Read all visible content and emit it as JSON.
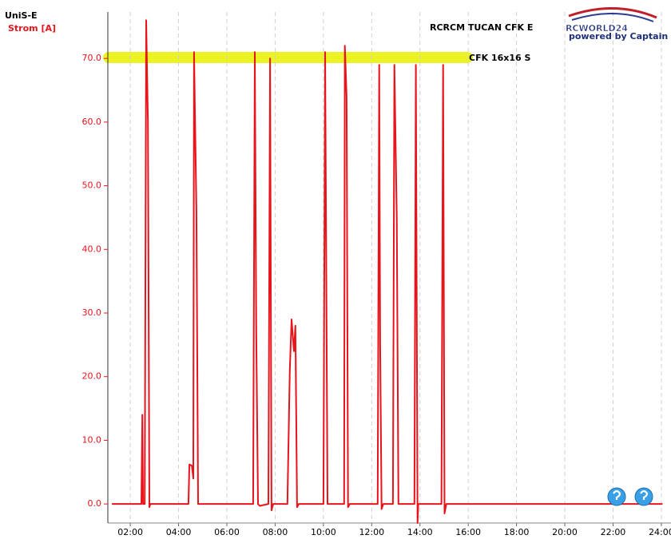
{
  "chart_data": {
    "type": "line",
    "title": "RCRCM TUCAN CFK E",
    "subtitle": "CFK 16x16 S",
    "device": "UniS-E",
    "ylabel": "Strom [A]",
    "logo": {
      "text": "RCWORLD24",
      "tagline": "powered by Captain Future"
    },
    "xlim": [
      1.07,
      24.4
    ],
    "ylim": [
      -3.0,
      77.3
    ],
    "xticks": [
      {
        "value": 2,
        "label": "02:00"
      },
      {
        "value": 4,
        "label": "04:00"
      },
      {
        "value": 6,
        "label": "06:00"
      },
      {
        "value": 8,
        "label": "08:00"
      },
      {
        "value": 10,
        "label": "10:00"
      },
      {
        "value": 12,
        "label": "12:00"
      },
      {
        "value": 14,
        "label": "14:00"
      },
      {
        "value": 16,
        "label": "16:00"
      },
      {
        "value": 18,
        "label": "18:00"
      },
      {
        "value": 20,
        "label": "20:00"
      },
      {
        "value": 22,
        "label": "22:00"
      },
      {
        "value": 24,
        "label": "24:00"
      }
    ],
    "yticks": [
      {
        "value": 0,
        "label": "0.0"
      },
      {
        "value": 10,
        "label": "10.0"
      },
      {
        "value": 20,
        "label": "20.0"
      },
      {
        "value": 30,
        "label": "30.0"
      },
      {
        "value": 40,
        "label": "40.0"
      },
      {
        "value": 50,
        "label": "50.0"
      },
      {
        "value": 60,
        "label": "60.0"
      },
      {
        "value": 70,
        "label": "70.0"
      }
    ],
    "grid": "x",
    "series": [
      {
        "name": "Strom [A]",
        "color": "#e8141c",
        "x": [
          1.24,
          2.46,
          2.5,
          2.53,
          2.6,
          2.66,
          2.73,
          2.79,
          2.83,
          4.41,
          4.45,
          4.55,
          4.61,
          4.64,
          4.74,
          4.81,
          7.09,
          7.16,
          7.22,
          7.29,
          7.36,
          7.72,
          7.79,
          7.85,
          7.92,
          8.51,
          8.61,
          8.68,
          8.78,
          8.84,
          8.91,
          8.98,
          10.0,
          10.07,
          10.17,
          10.86,
          10.89,
          10.96,
          11.02,
          11.09,
          12.25,
          12.31,
          12.35,
          12.41,
          12.48,
          12.88,
          12.94,
          13.04,
          13.11,
          13.77,
          13.83,
          13.9,
          13.93,
          14.89,
          14.96,
          15.02,
          15.09,
          24.05
        ],
        "values": [
          0,
          0,
          14,
          0,
          0,
          76,
          60,
          -0.5,
          0,
          0,
          6.2,
          6,
          4,
          71,
          46,
          0,
          0,
          71,
          27,
          0,
          -0.3,
          0,
          70,
          -1,
          0,
          0,
          21,
          29,
          24,
          28,
          -0.5,
          0,
          0,
          71,
          0,
          0,
          72,
          64,
          -0.5,
          0,
          0,
          69,
          25,
          -0.8,
          0,
          0,
          69,
          45,
          0,
          0,
          69,
          -3,
          0,
          0,
          69,
          -1.5,
          0,
          0
        ]
      }
    ]
  }
}
